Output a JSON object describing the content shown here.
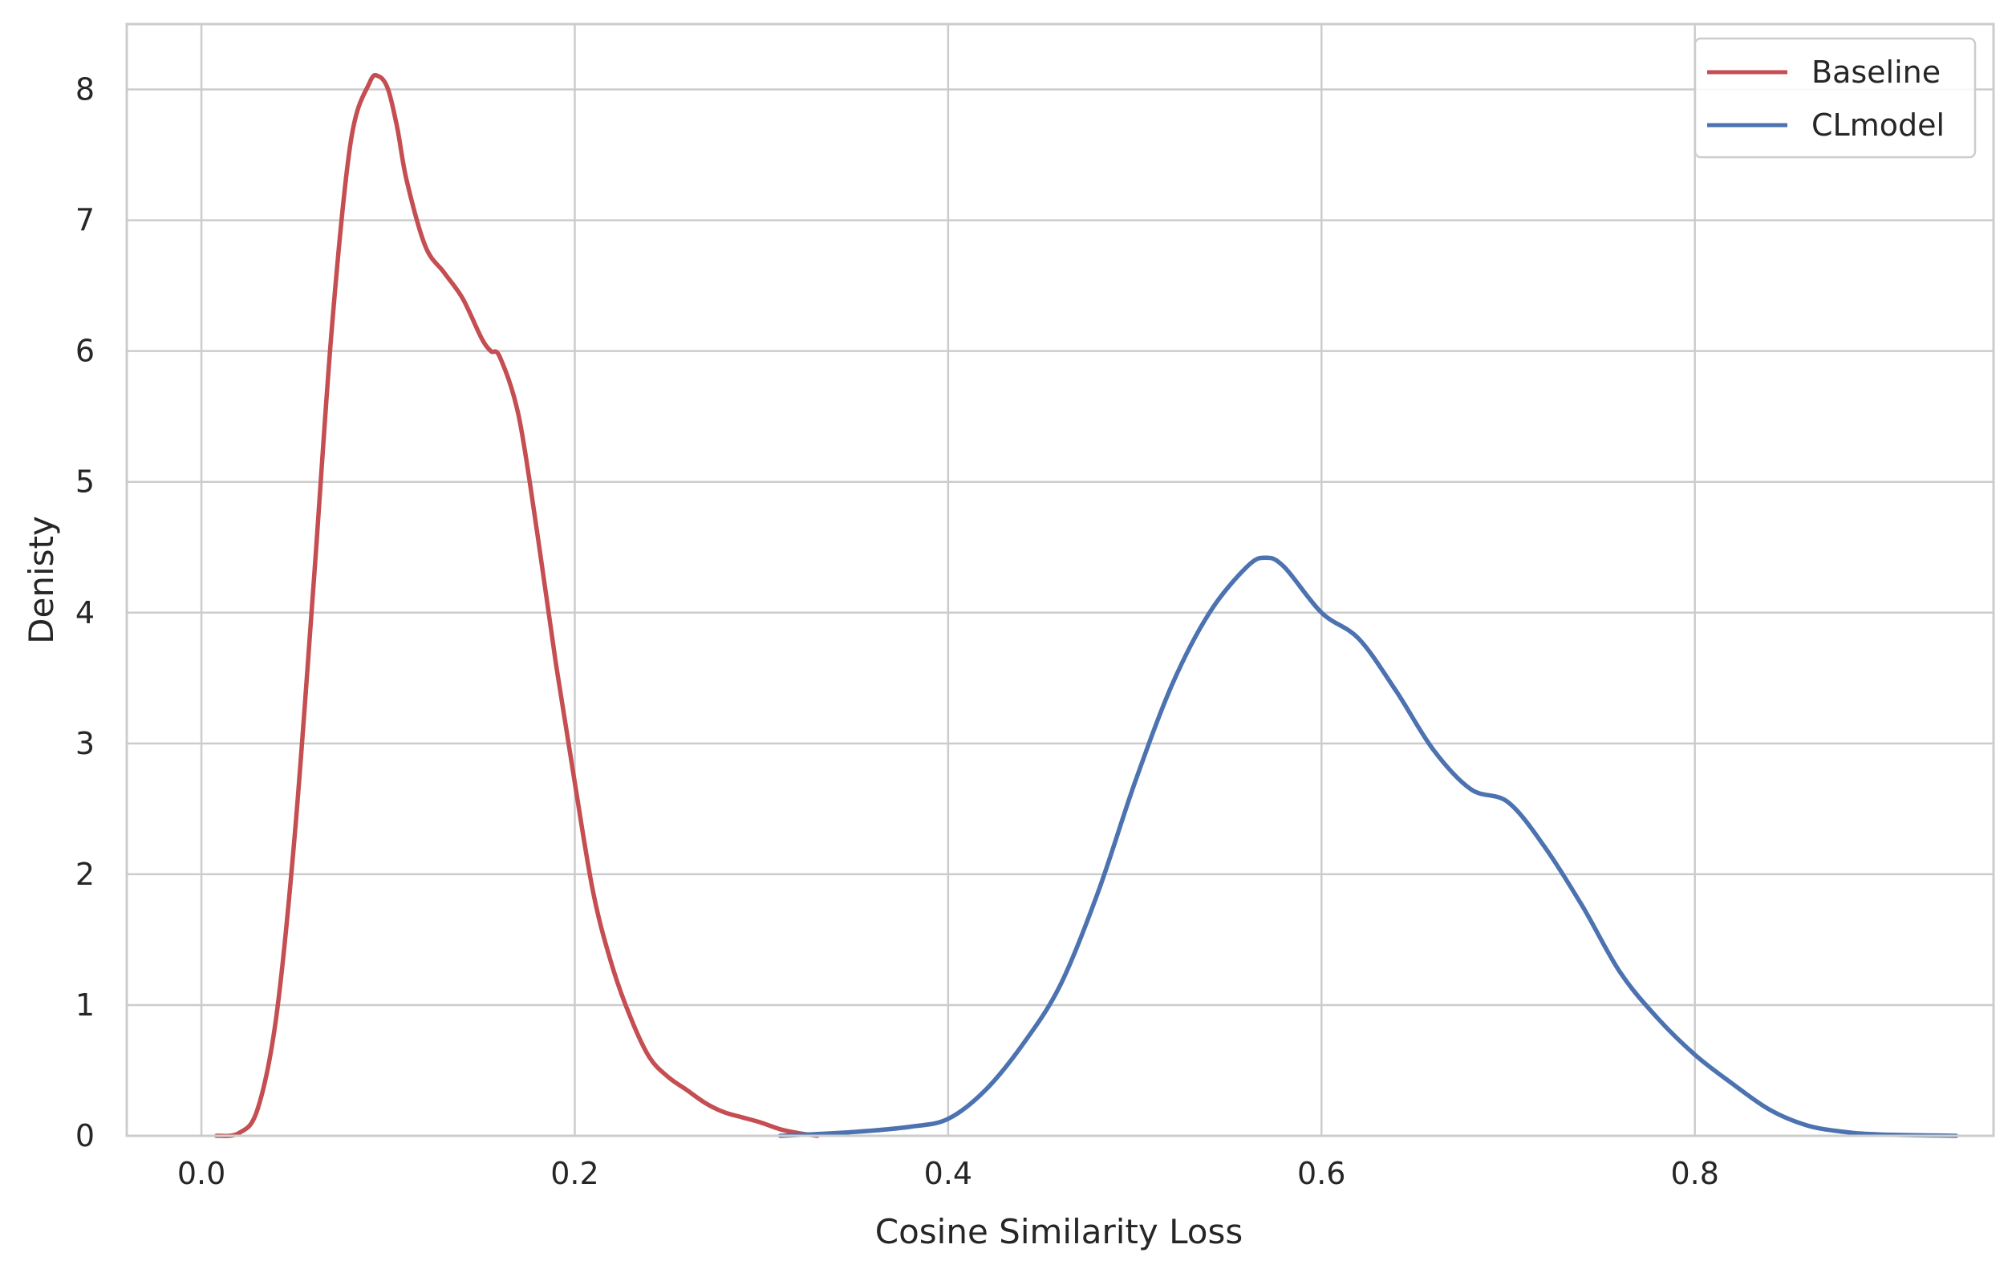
{
  "chart_data": {
    "type": "line",
    "title": "",
    "xlabel": "Cosine Similarity Loss",
    "ylabel": "Denisty",
    "xlim": [
      -0.04,
      0.96
    ],
    "ylim": [
      0,
      8.5
    ],
    "xticks": [
      0.0,
      0.2,
      0.4,
      0.6,
      0.8
    ],
    "xtick_labels": [
      "0.0",
      "0.2",
      "0.4",
      "0.6",
      "0.8"
    ],
    "yticks": [
      0,
      1,
      2,
      3,
      4,
      5,
      6,
      7,
      8
    ],
    "ytick_labels": [
      "0",
      "1",
      "2",
      "3",
      "4",
      "5",
      "6",
      "7",
      "8"
    ],
    "grid": true,
    "legend_position": "top-right",
    "series": [
      {
        "name": "Baseline",
        "color": "#c44e52",
        "x": [
          0.008,
          0.02,
          0.03,
          0.04,
          0.05,
          0.06,
          0.07,
          0.08,
          0.09,
          0.095,
          0.1,
          0.105,
          0.11,
          0.12,
          0.13,
          0.14,
          0.15,
          0.155,
          0.16,
          0.17,
          0.18,
          0.19,
          0.2,
          0.21,
          0.22,
          0.23,
          0.24,
          0.25,
          0.26,
          0.27,
          0.28,
          0.29,
          0.3,
          0.31,
          0.32,
          0.33
        ],
        "y": [
          0.0,
          0.02,
          0.2,
          0.9,
          2.3,
          4.2,
          6.2,
          7.6,
          8.05,
          8.1,
          8.0,
          7.7,
          7.3,
          6.8,
          6.6,
          6.4,
          6.1,
          6.0,
          5.95,
          5.5,
          4.6,
          3.6,
          2.7,
          1.85,
          1.3,
          0.9,
          0.6,
          0.45,
          0.35,
          0.25,
          0.18,
          0.14,
          0.1,
          0.05,
          0.02,
          0.0
        ]
      },
      {
        "name": "CLmodel",
        "color": "#4c72b0",
        "x": [
          0.31,
          0.35,
          0.38,
          0.4,
          0.42,
          0.44,
          0.46,
          0.48,
          0.5,
          0.52,
          0.54,
          0.56,
          0.57,
          0.58,
          0.6,
          0.62,
          0.64,
          0.66,
          0.68,
          0.7,
          0.72,
          0.74,
          0.76,
          0.78,
          0.8,
          0.82,
          0.84,
          0.86,
          0.88,
          0.9,
          0.94
        ],
        "y": [
          0.0,
          0.03,
          0.07,
          0.13,
          0.35,
          0.7,
          1.15,
          1.85,
          2.7,
          3.45,
          4.0,
          4.35,
          4.42,
          4.35,
          4.0,
          3.8,
          3.4,
          2.95,
          2.65,
          2.55,
          2.2,
          1.75,
          1.25,
          0.9,
          0.62,
          0.4,
          0.2,
          0.08,
          0.03,
          0.01,
          0.0
        ]
      }
    ]
  }
}
